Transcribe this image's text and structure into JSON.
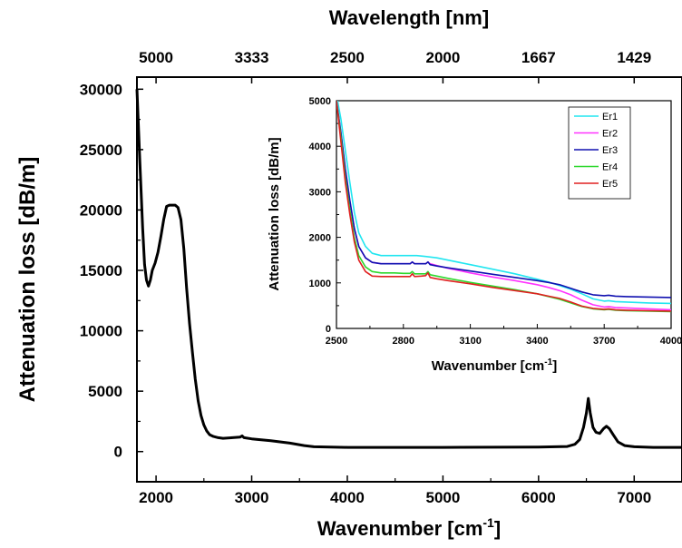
{
  "chart_data": [
    {
      "type": "line",
      "xlabel": "Wavenumber [cm",
      "xlabel_sup": "-1",
      "xlabel_end": "]",
      "ylabel": "Attenuation loss [dB/m]",
      "top_axis_label": "Wavelength [nm]",
      "xlim": [
        1800,
        7500
      ],
      "ylim": [
        -2500,
        31000
      ],
      "x_ticks": [
        2000,
        3000,
        4000,
        5000,
        6000,
        7000
      ],
      "y_ticks": [
        0,
        5000,
        10000,
        15000,
        20000,
        25000,
        30000
      ],
      "top_ticks": [
        {
          "label": "5000",
          "wavenumber": 2000
        },
        {
          "label": "3333",
          "wavenumber": 3000
        },
        {
          "label": "2500",
          "wavenumber": 4000
        },
        {
          "label": "2000",
          "wavenumber": 5000
        },
        {
          "label": "1667",
          "wavenumber": 6000
        },
        {
          "label": "1429",
          "wavenumber": 7000
        }
      ],
      "grid": false,
      "series": [
        {
          "color": "#000000",
          "x": [
            1800,
            1830,
            1860,
            1880,
            1900,
            1920,
            1940,
            1960,
            1990,
            2020,
            2050,
            2080,
            2110,
            2140,
            2170,
            2200,
            2230,
            2260,
            2290,
            2320,
            2350,
            2380,
            2410,
            2440,
            2470,
            2500,
            2530,
            2560,
            2600,
            2650,
            2700,
            2800,
            2880,
            2900,
            2920,
            3000,
            3200,
            3400,
            3550,
            3650,
            4000,
            5000,
            6000,
            6300,
            6380,
            6430,
            6470,
            6500,
            6520,
            6540,
            6570,
            6600,
            6640,
            6680,
            6710,
            6740,
            6780,
            6830,
            6900,
            7000,
            7200,
            7500
          ],
          "y": [
            30000,
            24000,
            18500,
            15500,
            14200,
            13700,
            14200,
            15000,
            15600,
            16500,
            17800,
            19200,
            20300,
            20400,
            20400,
            20400,
            20200,
            19200,
            16800,
            13500,
            10600,
            8200,
            6000,
            4200,
            3000,
            2200,
            1700,
            1400,
            1250,
            1150,
            1100,
            1150,
            1200,
            1300,
            1150,
            1050,
            900,
            700,
            500,
            400,
            350,
            350,
            380,
            420,
            600,
            1000,
            2000,
            3200,
            4400,
            3200,
            2000,
            1600,
            1500,
            1900,
            2100,
            1900,
            1400,
            800,
            500,
            400,
            350,
            350
          ]
        }
      ]
    },
    {
      "type": "line",
      "xlabel": "Wavenumber [cm",
      "xlabel_sup": "-1",
      "xlabel_end": "]",
      "ylabel": "Attenuation loss [dB/m]",
      "xlim": [
        2500,
        4000
      ],
      "ylim": [
        0,
        5000
      ],
      "x_ticks": [
        2500,
        2800,
        3100,
        3400,
        3700,
        4000
      ],
      "y_ticks": [
        0,
        1000,
        2000,
        3000,
        4000,
        5000
      ],
      "grid": false,
      "legend": "top-right",
      "series": [
        {
          "name": "Er1",
          "color": "#22e6f0",
          "x": [
            2505,
            2520,
            2540,
            2560,
            2580,
            2600,
            2630,
            2660,
            2700,
            2760,
            2820,
            2860,
            2900,
            2950,
            3000,
            3100,
            3200,
            3300,
            3400,
            3450,
            3500,
            3550,
            3600,
            3650,
            3700,
            3720,
            3750,
            3800,
            3900,
            4000
          ],
          "y": [
            5000,
            4600,
            3900,
            3200,
            2550,
            2100,
            1800,
            1650,
            1600,
            1600,
            1600,
            1600,
            1580,
            1550,
            1500,
            1400,
            1300,
            1200,
            1080,
            1020,
            940,
            860,
            760,
            650,
            600,
            610,
            590,
            580,
            560,
            550
          ]
        },
        {
          "name": "Er2",
          "color": "#ff33ff",
          "x": [
            2500,
            2520,
            2540,
            2560,
            2580,
            2600,
            2630,
            2660,
            2700,
            2760,
            2800,
            2830,
            2840,
            2850,
            2880,
            2900,
            2910,
            2920,
            2950,
            3000,
            3100,
            3200,
            3300,
            3400,
            3450,
            3500,
            3550,
            3600,
            3650,
            3700,
            3720,
            3750,
            3800,
            3900,
            4000
          ],
          "y": [
            5000,
            4300,
            3500,
            2800,
            2200,
            1800,
            1550,
            1450,
            1420,
            1420,
            1420,
            1420,
            1460,
            1420,
            1420,
            1420,
            1460,
            1420,
            1380,
            1320,
            1220,
            1130,
            1050,
            960,
            900,
            830,
            740,
            620,
            520,
            470,
            480,
            460,
            450,
            430,
            410
          ]
        },
        {
          "name": "Er3",
          "color": "#1010b0",
          "x": [
            2500,
            2520,
            2540,
            2560,
            2580,
            2600,
            2630,
            2660,
            2700,
            2760,
            2800,
            2830,
            2840,
            2850,
            2880,
            2900,
            2910,
            2920,
            2950,
            3000,
            3100,
            3200,
            3300,
            3400,
            3450,
            3500,
            3550,
            3600,
            3650,
            3700,
            3720,
            3750,
            3800,
            3900,
            4000
          ],
          "y": [
            5000,
            4300,
            3500,
            2800,
            2200,
            1800,
            1550,
            1450,
            1420,
            1420,
            1420,
            1420,
            1460,
            1420,
            1420,
            1420,
            1460,
            1400,
            1370,
            1330,
            1260,
            1190,
            1120,
            1050,
            1010,
            960,
            880,
            800,
            740,
            720,
            730,
            710,
            700,
            690,
            680
          ]
        },
        {
          "name": "Er4",
          "color": "#2ed82e",
          "x": [
            2500,
            2520,
            2540,
            2560,
            2580,
            2600,
            2630,
            2660,
            2700,
            2760,
            2800,
            2830,
            2840,
            2850,
            2880,
            2900,
            2910,
            2920,
            2950,
            3000,
            3100,
            3200,
            3300,
            3400,
            3450,
            3500,
            3550,
            3600,
            3650,
            3700,
            3720,
            3750,
            3800,
            3900,
            4000
          ],
          "y": [
            5000,
            4200,
            3300,
            2600,
            2000,
            1600,
            1350,
            1250,
            1220,
            1220,
            1210,
            1210,
            1250,
            1200,
            1200,
            1200,
            1250,
            1180,
            1150,
            1100,
            1010,
            930,
            850,
            760,
            700,
            640,
            560,
            480,
            430,
            410,
            420,
            400,
            390,
            380,
            370
          ]
        },
        {
          "name": "Er5",
          "color": "#e02020",
          "x": [
            2500,
            2520,
            2540,
            2560,
            2580,
            2600,
            2630,
            2660,
            2700,
            2760,
            2800,
            2830,
            2840,
            2850,
            2880,
            2900,
            2910,
            2920,
            2950,
            3000,
            3100,
            3200,
            3300,
            3400,
            3450,
            3500,
            3550,
            3600,
            3650,
            3700,
            3720,
            3750,
            3800,
            3900,
            4000
          ],
          "y": [
            5000,
            4100,
            3200,
            2500,
            1900,
            1500,
            1250,
            1150,
            1140,
            1140,
            1140,
            1140,
            1200,
            1140,
            1150,
            1160,
            1220,
            1120,
            1090,
            1050,
            980,
            900,
            830,
            760,
            710,
            660,
            580,
            490,
            440,
            420,
            430,
            410,
            400,
            390,
            380
          ]
        }
      ]
    }
  ]
}
